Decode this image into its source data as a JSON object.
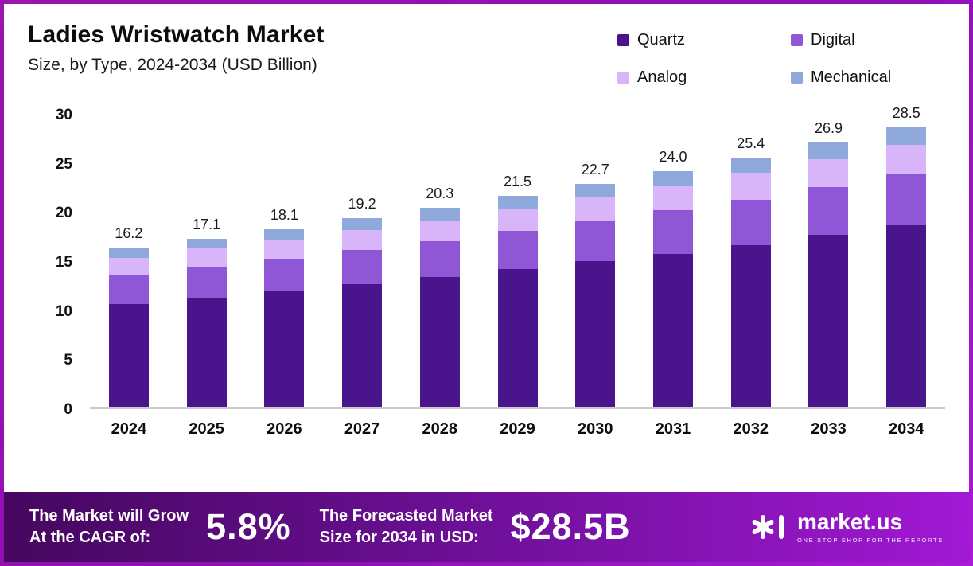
{
  "header": {
    "title": "Ladies Wristwatch Market",
    "subtitle": "Size, by Type, 2024-2034 (USD Billion)"
  },
  "chart_data": {
    "type": "bar",
    "stacked": true,
    "title": "Ladies Wristwatch Market Size, by Type, 2024-2034 (USD Billion)",
    "categories": [
      "2024",
      "2025",
      "2026",
      "2027",
      "2028",
      "2029",
      "2030",
      "2031",
      "2032",
      "2033",
      "2034"
    ],
    "series": [
      {
        "name": "Quartz",
        "color": "#4a148c",
        "values": [
          10.5,
          11.1,
          11.8,
          12.5,
          13.2,
          14.0,
          14.8,
          15.6,
          16.5,
          17.5,
          18.5
        ]
      },
      {
        "name": "Digital",
        "color": "#8f56d6",
        "values": [
          3.0,
          3.2,
          3.3,
          3.5,
          3.7,
          3.9,
          4.1,
          4.4,
          4.6,
          4.9,
          5.2
        ]
      },
      {
        "name": "Analog",
        "color": "#d8b4f8",
        "values": [
          1.7,
          1.8,
          1.9,
          2.0,
          2.1,
          2.3,
          2.4,
          2.5,
          2.7,
          2.8,
          3.0
        ]
      },
      {
        "name": "Mechanical",
        "color": "#8fa9dc",
        "values": [
          1.0,
          1.0,
          1.1,
          1.2,
          1.3,
          1.3,
          1.4,
          1.5,
          1.6,
          1.7,
          1.8
        ]
      }
    ],
    "totals": [
      16.2,
      17.1,
      18.1,
      19.2,
      20.3,
      21.5,
      22.7,
      24.0,
      25.4,
      26.9,
      28.5
    ],
    "ylim": [
      0,
      30
    ],
    "yticks": [
      0,
      5,
      10,
      15,
      20,
      25,
      30
    ],
    "grid": false,
    "legend_position": "top-right",
    "value_labels": "total above each bar"
  },
  "banner": {
    "cagr_label_line1": "The Market will Grow",
    "cagr_label_line2": "At the CAGR of:",
    "cagr_value": "5.8%",
    "forecast_label_line1": "The Forecasted Market",
    "forecast_label_line2": "Size for 2034 in USD:",
    "forecast_value": "$28.5B",
    "logo_text": "market.us",
    "logo_tagline": "ONE STOP SHOP FOR THE REPORTS"
  },
  "colors": {
    "quartz": "#4a148c",
    "digital": "#8f56d6",
    "analog": "#d8b4f8",
    "mechanical": "#8fa9dc",
    "banner_gradient_start": "#45075f",
    "banner_gradient_end": "#a118d4",
    "frame_border": "#9c13ad",
    "axis_line": "#cbcbcb"
  }
}
